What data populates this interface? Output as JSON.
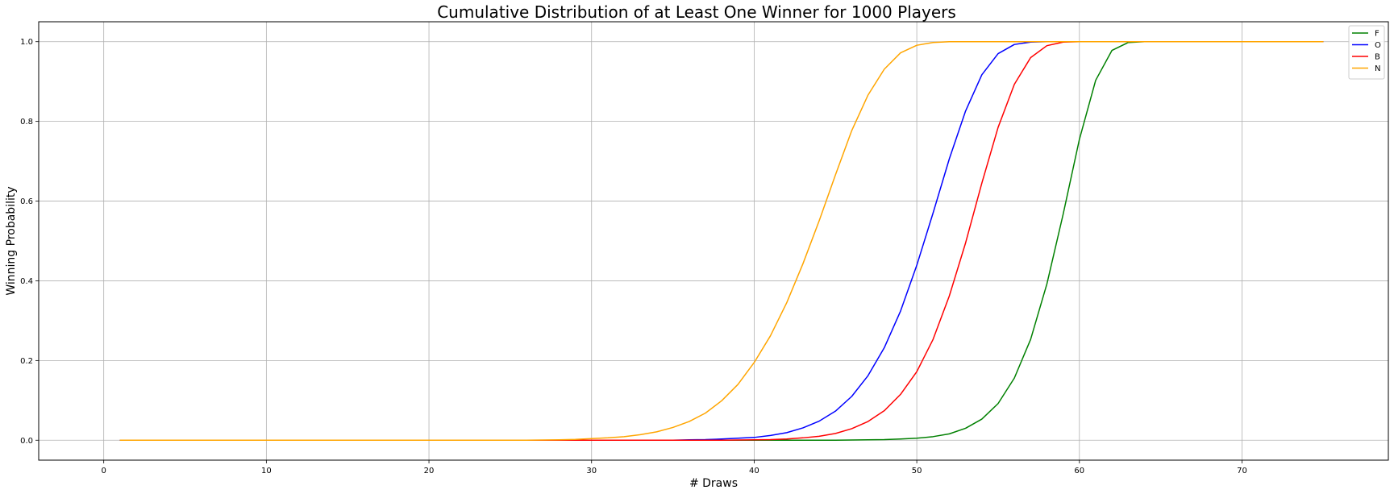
{
  "chart_data": {
    "type": "line",
    "title": "Cumulative Distribution of at Least One Winner for 1000 Players",
    "xlabel": "# Draws",
    "ylabel": "Winning Probability",
    "xlim": [
      -4,
      79
    ],
    "ylim": [
      -0.05,
      1.05
    ],
    "xticks": [
      0,
      10,
      20,
      30,
      40,
      50,
      60,
      70
    ],
    "yticks": [
      0.0,
      0.2,
      0.4,
      0.6,
      0.8,
      1.0
    ],
    "xtick_labels": [
      "0",
      "10",
      "20",
      "30",
      "40",
      "50",
      "60",
      "70"
    ],
    "ytick_labels": [
      "0.0",
      "0.2",
      "0.4",
      "0.6",
      "0.8",
      "1.0"
    ],
    "grid": true,
    "legend_position": "top-right",
    "series": [
      {
        "name": "F",
        "color": "#008000",
        "points": [
          [
            1,
            0
          ],
          [
            45,
            0
          ],
          [
            46,
            0.0005
          ],
          [
            47,
            0.001
          ],
          [
            48,
            0.0015
          ],
          [
            49,
            0.003
          ],
          [
            50,
            0.005
          ],
          [
            51,
            0.009
          ],
          [
            52,
            0.016
          ],
          [
            53,
            0.03
          ],
          [
            54,
            0.053
          ],
          [
            55,
            0.092
          ],
          [
            56,
            0.156
          ],
          [
            57,
            0.253
          ],
          [
            58,
            0.392
          ],
          [
            59,
            0.567
          ],
          [
            60,
            0.755
          ],
          [
            61,
            0.903
          ],
          [
            62,
            0.978
          ],
          [
            63,
            0.998
          ],
          [
            64,
            1
          ],
          [
            75,
            1
          ]
        ]
      },
      {
        "name": "O",
        "color": "#0000ff",
        "points": [
          [
            1,
            0
          ],
          [
            35,
            0
          ],
          [
            36,
            0.001
          ],
          [
            37,
            0.0015
          ],
          [
            38,
            0.003
          ],
          [
            39,
            0.005
          ],
          [
            40,
            0.007
          ],
          [
            41,
            0.012
          ],
          [
            42,
            0.019
          ],
          [
            43,
            0.031
          ],
          [
            44,
            0.048
          ],
          [
            45,
            0.073
          ],
          [
            46,
            0.11
          ],
          [
            47,
            0.162
          ],
          [
            48,
            0.232
          ],
          [
            49,
            0.324
          ],
          [
            50,
            0.439
          ],
          [
            51,
            0.57
          ],
          [
            52,
            0.706
          ],
          [
            53,
            0.826
          ],
          [
            54,
            0.917
          ],
          [
            55,
            0.97
          ],
          [
            56,
            0.993
          ],
          [
            57,
            0.999
          ],
          [
            58,
            1
          ],
          [
            75,
            1
          ]
        ]
      },
      {
        "name": "B",
        "color": "#ff0000",
        "points": [
          [
            1,
            0
          ],
          [
            38,
            0
          ],
          [
            39,
            0.0005
          ],
          [
            40,
            0.001
          ],
          [
            41,
            0.0015
          ],
          [
            42,
            0.003
          ],
          [
            43,
            0.006
          ],
          [
            44,
            0.01
          ],
          [
            45,
            0.017
          ],
          [
            46,
            0.029
          ],
          [
            47,
            0.047
          ],
          [
            48,
            0.074
          ],
          [
            49,
            0.115
          ],
          [
            50,
            0.172
          ],
          [
            51,
            0.253
          ],
          [
            52,
            0.362
          ],
          [
            53,
            0.495
          ],
          [
            54,
            0.645
          ],
          [
            55,
            0.785
          ],
          [
            56,
            0.893
          ],
          [
            57,
            0.96
          ],
          [
            58,
            0.99
          ],
          [
            59,
            0.999
          ],
          [
            60,
            1
          ],
          [
            75,
            1
          ]
        ]
      },
      {
        "name": "N",
        "color": "#ffa500",
        "points": [
          [
            1,
            0
          ],
          [
            26,
            0
          ],
          [
            27,
            0.0005
          ],
          [
            28,
            0.001
          ],
          [
            29,
            0.002
          ],
          [
            30,
            0.004
          ],
          [
            31,
            0.006
          ],
          [
            32,
            0.009
          ],
          [
            33,
            0.014
          ],
          [
            34,
            0.021
          ],
          [
            35,
            0.032
          ],
          [
            36,
            0.047
          ],
          [
            37,
            0.068
          ],
          [
            38,
            0.099
          ],
          [
            39,
            0.14
          ],
          [
            40,
            0.195
          ],
          [
            41,
            0.262
          ],
          [
            42,
            0.345
          ],
          [
            43,
            0.443
          ],
          [
            44,
            0.551
          ],
          [
            45,
            0.666
          ],
          [
            46,
            0.777
          ],
          [
            47,
            0.866
          ],
          [
            48,
            0.931
          ],
          [
            49,
            0.972
          ],
          [
            50,
            0.991
          ],
          [
            51,
            0.998
          ],
          [
            52,
            1
          ],
          [
            75,
            1
          ]
        ]
      }
    ]
  }
}
